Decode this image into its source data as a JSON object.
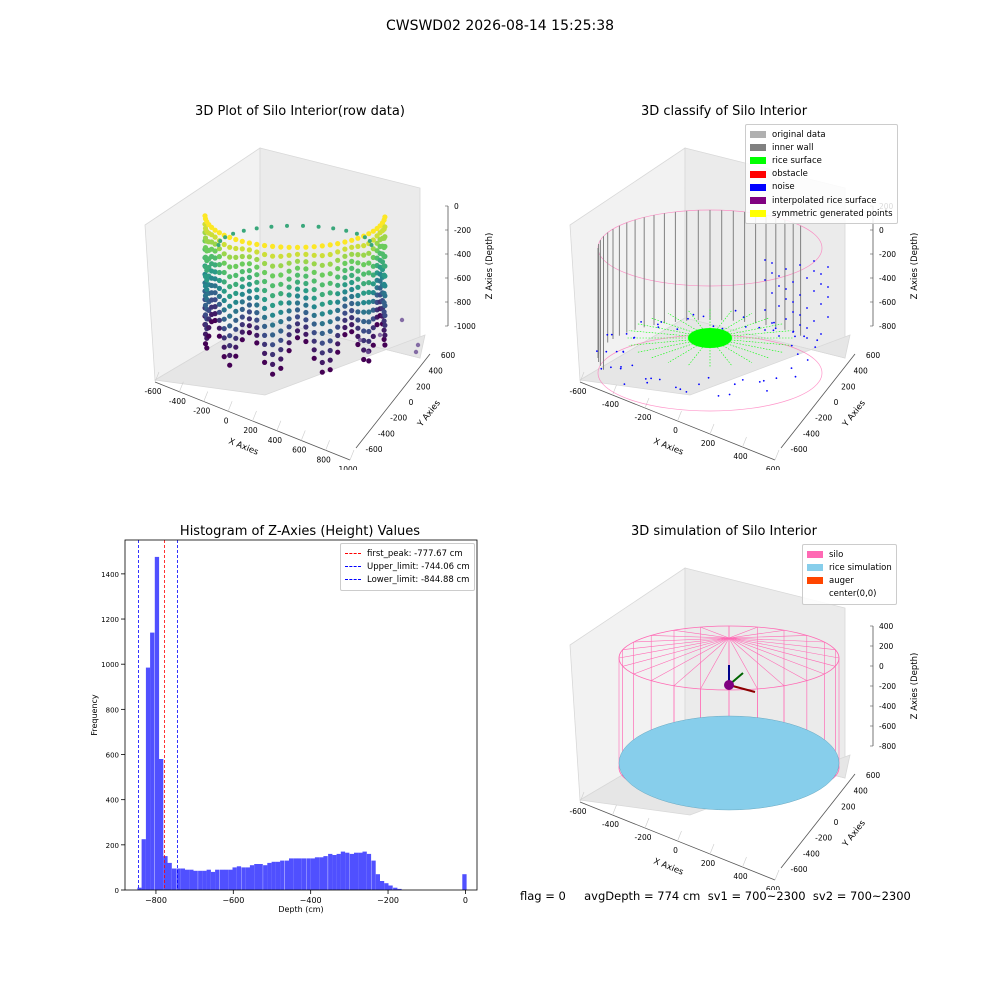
{
  "figure": {
    "title": "CWSWD02 2026-08-14 15:25:38"
  },
  "chart_data": [
    {
      "type": "scatter",
      "title": "3D Plot of Silo Interior(row data)",
      "xlabel": "X Axies",
      "ylabel": "Y Axies",
      "zlabel": "Z Axies (Depth)",
      "xticks": [
        "-600",
        "-400",
        "-200",
        "0",
        "200",
        "400",
        "600",
        "800",
        "1000"
      ],
      "yticks": [
        "-600",
        "-400",
        "-200",
        "0",
        "200",
        "400",
        "600"
      ],
      "zticks": [
        "0",
        "-200",
        "-400",
        "-600",
        "-800",
        "-1000"
      ],
      "xlim": [
        -650,
        1000
      ],
      "ylim": [
        -650,
        650
      ],
      "zlim": [
        -1100,
        50
      ],
      "colormap": "viridis",
      "wall_radius": 620,
      "z_range": [
        -1000,
        -80
      ],
      "notes": "cylindrical wall of depth points colored by depth plus a few scattered outliers"
    },
    {
      "type": "scatter",
      "title": "3D classify of Silo Interior",
      "xlabel": "X Axies",
      "ylabel": "Y Axies",
      "zlabel": "Z Axies (Depth)",
      "xticks": [
        "-600",
        "-400",
        "-200",
        "0",
        "200",
        "400",
        "600"
      ],
      "yticks": [
        "-600",
        "-400",
        "-200",
        "0",
        "200",
        "400",
        "600"
      ],
      "zticks": [
        "200",
        "0",
        "-200",
        "-400",
        "-600",
        "-800"
      ],
      "legend_position": "top-right",
      "legend": [
        {
          "label": "original data",
          "color": "#b0b0b0"
        },
        {
          "label": "inner wall",
          "color": "#808080"
        },
        {
          "label": "rice surface",
          "color": "#00ff00"
        },
        {
          "label": "obstacle",
          "color": "#ff0000"
        },
        {
          "label": "noise",
          "color": "#0000ff"
        },
        {
          "label": "interpolated rice surface",
          "color": "#800080"
        },
        {
          "label": "symmetric generated points",
          "color": "#ffff00"
        }
      ]
    },
    {
      "type": "bar",
      "title": "Histogram of Z-Axies (Height) Values",
      "xlabel": "Depth (cm)",
      "ylabel": "Frequency",
      "xlim": [
        -880,
        30
      ],
      "ylim": [
        0,
        1550
      ],
      "xticks": [
        -800,
        -600,
        -400,
        -200,
        0
      ],
      "yticks": [
        0,
        200,
        400,
        600,
        800,
        1000,
        1200,
        1400
      ],
      "bar_color": "#5050ff",
      "bin_width": 11.2,
      "bins_start": [
        -848,
        -837,
        -826,
        -815,
        -803,
        -792,
        -781,
        -770,
        -759,
        -747,
        -736,
        -725,
        -714,
        -703,
        -691,
        -680,
        -669,
        -658,
        -647,
        -635,
        -624,
        -613,
        -602,
        -591,
        -579,
        -568,
        -557,
        -546,
        -535,
        -523,
        -512,
        -501,
        -490,
        -479,
        -467,
        -456,
        -445,
        -434,
        -423,
        -411,
        -400,
        -389,
        -378,
        -367,
        -355,
        -344,
        -333,
        -322,
        -311,
        -299,
        -288,
        -277,
        -266,
        -255,
        -243,
        -232,
        -221,
        -210,
        -199,
        -187,
        -176,
        -165,
        -154,
        -143,
        -131,
        -120,
        -109,
        -98,
        -87,
        -75,
        -64,
        -53,
        -42,
        -31,
        -19,
        -8
      ],
      "values": [
        10,
        225,
        985,
        1140,
        1475,
        580,
        150,
        120,
        95,
        95,
        95,
        90,
        90,
        85,
        85,
        85,
        90,
        80,
        90,
        90,
        90,
        90,
        100,
        105,
        100,
        100,
        110,
        115,
        115,
        110,
        120,
        125,
        125,
        130,
        130,
        140,
        140,
        140,
        140,
        140,
        140,
        145,
        145,
        150,
        160,
        155,
        160,
        170,
        165,
        160,
        165,
        165,
        170,
        160,
        130,
        70,
        40,
        30,
        20,
        10,
        5,
        0,
        0,
        0,
        0,
        0,
        0,
        0,
        0,
        0,
        0,
        0,
        0,
        0,
        0,
        70
      ],
      "vlines": [
        {
          "x": -777.67,
          "label": "first_peak: -777.67 cm",
          "color": "#ff0000"
        },
        {
          "x": -744.06,
          "label": "Upper_limit: -744.06 cm",
          "color": "#0000ff"
        },
        {
          "x": -844.88,
          "label": "Lower_limit: -844.88 cm",
          "color": "#0000ff"
        }
      ],
      "legend_position": "top-right"
    },
    {
      "type": "scatter",
      "title": "3D simulation of Silo Interior",
      "xlabel": "X Axies",
      "ylabel": "Y Axies",
      "zlabel": "Z Axies (Depth)",
      "xticks": [
        "-600",
        "-400",
        "-200",
        "0",
        "200",
        "400",
        "600"
      ],
      "yticks": [
        "-600",
        "-400",
        "-200",
        "0",
        "200",
        "400",
        "600"
      ],
      "zticks": [
        "400",
        "200",
        "0",
        "-200",
        "-400",
        "-600",
        "-800"
      ],
      "legend_position": "top-right",
      "legend": [
        {
          "label": "silo",
          "color": "#ff69b4"
        },
        {
          "label": "rice simulation",
          "color": "#87ceeb"
        },
        {
          "label": "auger",
          "color": "#ff4500"
        },
        {
          "label": "center(0,0)",
          "color": "#ffffff"
        }
      ]
    }
  ],
  "footer": {
    "status": "flag = 0     avgDepth = 774 cm  sv1 = 700~2300  sv2 = 700~2300"
  }
}
